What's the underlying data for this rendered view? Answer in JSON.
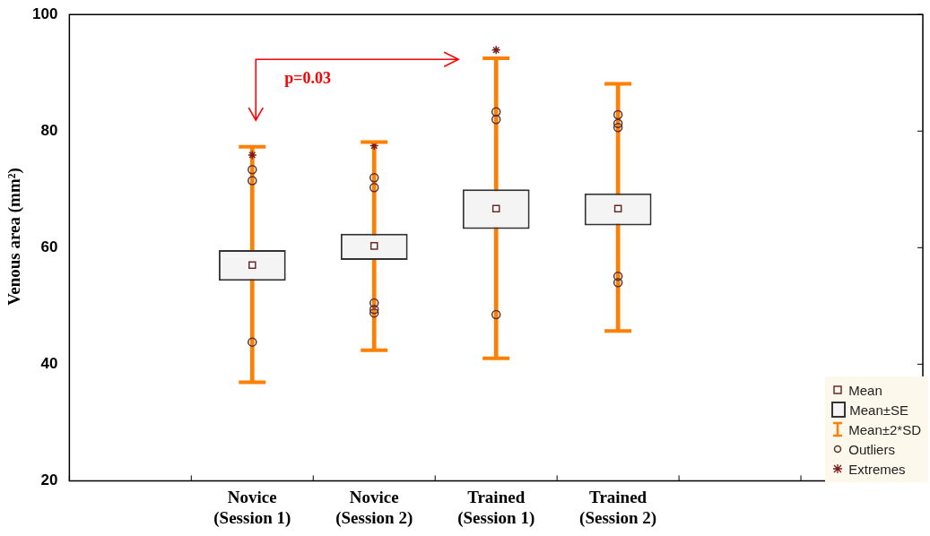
{
  "chart_data": {
    "type": "box",
    "ylabel": "Venous area (mm²)",
    "categories": [
      null,
      "Novice\n(Session 1)",
      "Novice\n(Session 2)",
      "Trained\n(Session 1)",
      "Trained\n(Session 2)",
      null,
      null
    ],
    "ylim": [
      20,
      100
    ],
    "yticks": [
      20,
      40,
      60,
      80,
      100
    ],
    "grid": false,
    "legend": "bottom right",
    "annotations": [
      "p=0.03"
    ],
    "series": [
      {
        "name": "Mean±2*SD",
        "type": "bar",
        "color": "#ff7f00",
        "base": [
          null,
          36.9,
          42.4,
          41.0,
          45.7,
          null,
          null
        ],
        "values": [
          null,
          40.4,
          35.7,
          51.5,
          42.4,
          null,
          null
        ]
      },
      {
        "name": "Mean±SE",
        "type": "bar",
        "color": "#f4f4f4",
        "base": [
          null,
          54.3,
          57.9,
          63.2,
          63.8,
          null,
          null
        ],
        "values": [
          null,
          5.3,
          4.5,
          6.8,
          5.5,
          null,
          null
        ]
      },
      {
        "name": "Mean",
        "type": "scatter",
        "marker": "square",
        "color": "#6b2b2b",
        "values": [
          null,
          57.0,
          60.3,
          66.7,
          66.7,
          null,
          null
        ]
      },
      {
        "name": "Outliers",
        "type": "scatter",
        "marker": "circle",
        "color": "#5a3030",
        "x": [
          "Novice\n(Session 1)",
          "Novice\n(Session 1)",
          "Novice\n(Session 1)",
          "Novice\n(Session 2)",
          "Novice\n(Session 2)",
          "Novice\n(Session 2)",
          "Novice\n(Session 2)",
          "Novice\n(Session 2)",
          "Trained\n(Session 1)",
          "Trained\n(Session 1)",
          "Trained\n(Session 1)",
          "Trained\n(Session 2)",
          "Trained\n(Session 2)",
          "Trained\n(Session 2)",
          "Trained\n(Session 2)",
          "Trained\n(Session 2)"
        ],
        "values": [
          73.4,
          71.5,
          43.8,
          72.0,
          70.3,
          50.5,
          49.4,
          48.8,
          83.3,
          82.0,
          48.5,
          82.8,
          81.3,
          80.6,
          55.1,
          54.0
        ]
      },
      {
        "name": "Extremes",
        "type": "scatter",
        "marker": "cross",
        "color": "#7b1a1a",
        "x": [
          "Novice\n(Session 1)",
          "Novice\n(Session 2)",
          "Trained\n(Session 1)"
        ],
        "values": [
          75.9,
          77.5,
          93.9
        ]
      }
    ]
  }
}
